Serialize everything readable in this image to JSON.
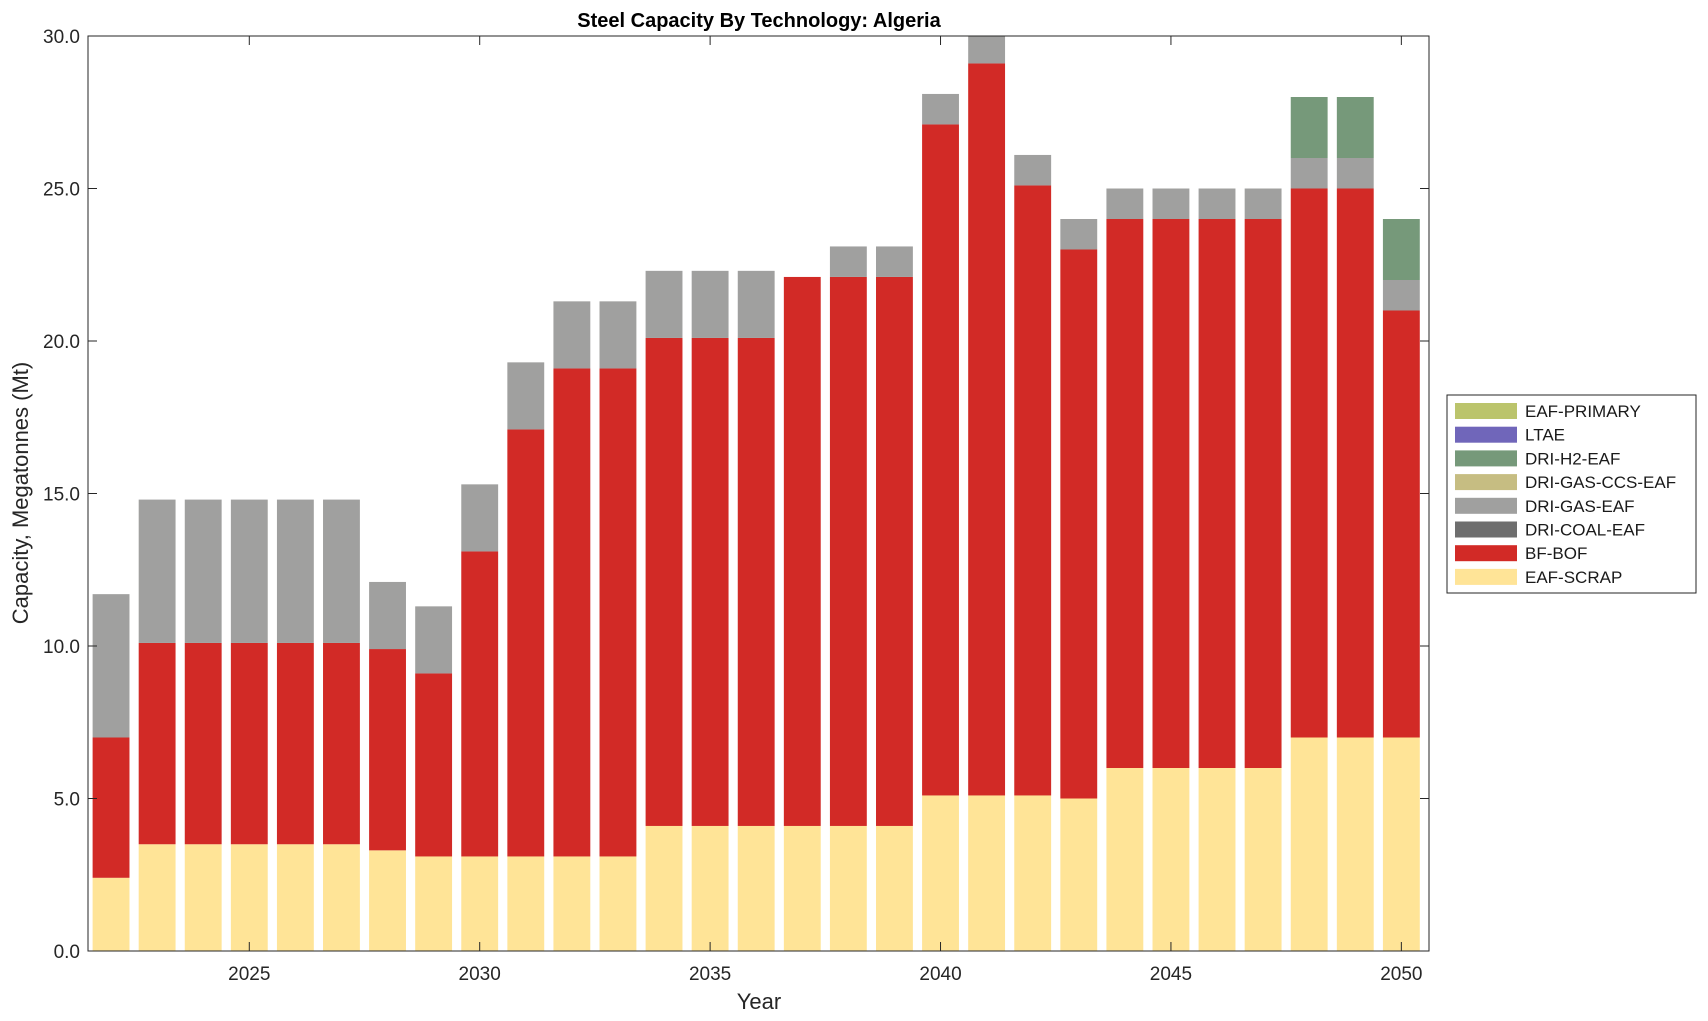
{
  "chart_data": {
    "type": "bar",
    "stacked": true,
    "title": "Steel Capacity By Technology: Algeria",
    "xlabel": "Year",
    "ylabel": "Capacity, Megatonnes (Mt)",
    "ylim": [
      0,
      30
    ],
    "xlim": [
      2021.5,
      2050.6
    ],
    "yticks": [
      0,
      5,
      10,
      15,
      20,
      25,
      30
    ],
    "ytick_labels": [
      "0.0",
      "5.0",
      "10.0",
      "15.0",
      "20.0",
      "25.0",
      "30.0"
    ],
    "xticks": [
      2025,
      2030,
      2035,
      2040,
      2045,
      2050
    ],
    "xtick_labels": [
      "2025",
      "2030",
      "2035",
      "2040",
      "2045",
      "2050"
    ],
    "legend_position": "outside-right",
    "categories": [
      2022,
      2023,
      2024,
      2025,
      2026,
      2027,
      2028,
      2029,
      2030,
      2031,
      2032,
      2033,
      2034,
      2035,
      2036,
      2037,
      2038,
      2039,
      2040,
      2041,
      2042,
      2043,
      2044,
      2045,
      2046,
      2047,
      2048,
      2049,
      2050
    ],
    "series": [
      {
        "name": "EAF-SCRAP",
        "color": "#FFE497",
        "values": [
          2.4,
          3.5,
          3.5,
          3.5,
          3.5,
          3.5,
          3.3,
          3.1,
          3.1,
          3.1,
          3.1,
          3.1,
          4.1,
          4.1,
          4.1,
          4.1,
          4.1,
          4.1,
          5.1,
          5.1,
          5.1,
          5.0,
          6.0,
          6.0,
          6.0,
          6.0,
          7.0,
          7.0,
          7.0
        ]
      },
      {
        "name": "BF-BOF",
        "color": "#D22A26",
        "values": [
          4.6,
          6.6,
          6.6,
          6.6,
          6.6,
          6.6,
          6.6,
          6.0,
          10.0,
          14.0,
          16.0,
          16.0,
          16.0,
          16.0,
          16.0,
          18.0,
          18.0,
          18.0,
          22.0,
          24.0,
          20.0,
          18.0,
          18.0,
          18.0,
          18.0,
          18.0,
          18.0,
          18.0,
          14.0
        ]
      },
      {
        "name": "DRI-COAL-EAF",
        "color": "#6E6E6E",
        "values": [
          0,
          0,
          0,
          0,
          0,
          0,
          0,
          0,
          0,
          0,
          0,
          0,
          0,
          0,
          0,
          0,
          0,
          0,
          0,
          0,
          0,
          0,
          0,
          0,
          0,
          0,
          0,
          0,
          0
        ]
      },
      {
        "name": "DRI-GAS-EAF",
        "color": "#A0A09F",
        "values": [
          4.7,
          4.7,
          4.7,
          4.7,
          4.7,
          4.7,
          2.2,
          2.2,
          2.2,
          2.2,
          2.2,
          2.2,
          2.2,
          2.2,
          2.2,
          0.0,
          1.0,
          1.0,
          1.0,
          1.0,
          1.0,
          1.0,
          1.0,
          1.0,
          1.0,
          1.0,
          1.0,
          1.0,
          1.0
        ]
      },
      {
        "name": "DRI-GAS-CCS-EAF",
        "color": "#C6BD82",
        "values": [
          0,
          0,
          0,
          0,
          0,
          0,
          0,
          0,
          0,
          0,
          0,
          0,
          0,
          0,
          0,
          0,
          0,
          0,
          0,
          0,
          0,
          0,
          0,
          0,
          0,
          0,
          0,
          0,
          0
        ]
      },
      {
        "name": "DRI-H2-EAF",
        "color": "#76997A",
        "values": [
          0,
          0,
          0,
          0,
          0,
          0,
          0,
          0,
          0,
          0,
          0,
          0,
          0,
          0,
          0,
          0,
          0,
          0,
          0,
          0,
          0,
          0,
          0,
          0,
          0,
          0,
          2.0,
          2.0,
          2.0
        ]
      },
      {
        "name": "LTAE",
        "color": "#7066BA",
        "values": [
          0,
          0,
          0,
          0,
          0,
          0,
          0,
          0,
          0,
          0,
          0,
          0,
          0,
          0,
          0,
          0,
          0,
          0,
          0,
          0,
          0,
          0,
          0,
          0,
          0,
          0,
          0,
          0,
          0
        ]
      },
      {
        "name": "EAF-PRIMARY",
        "color": "#BBC46C",
        "values": [
          0,
          0,
          0,
          0,
          0,
          0,
          0,
          0,
          0,
          0,
          0,
          0,
          0,
          0,
          0,
          0,
          0,
          0,
          0,
          0,
          0,
          0,
          0,
          0,
          0,
          0,
          0,
          0,
          0
        ]
      }
    ],
    "legend_order": [
      "EAF-PRIMARY",
      "LTAE",
      "DRI-H2-EAF",
      "DRI-GAS-CCS-EAF",
      "DRI-GAS-EAF",
      "DRI-COAL-EAF",
      "BF-BOF",
      "EAF-SCRAP"
    ]
  }
}
